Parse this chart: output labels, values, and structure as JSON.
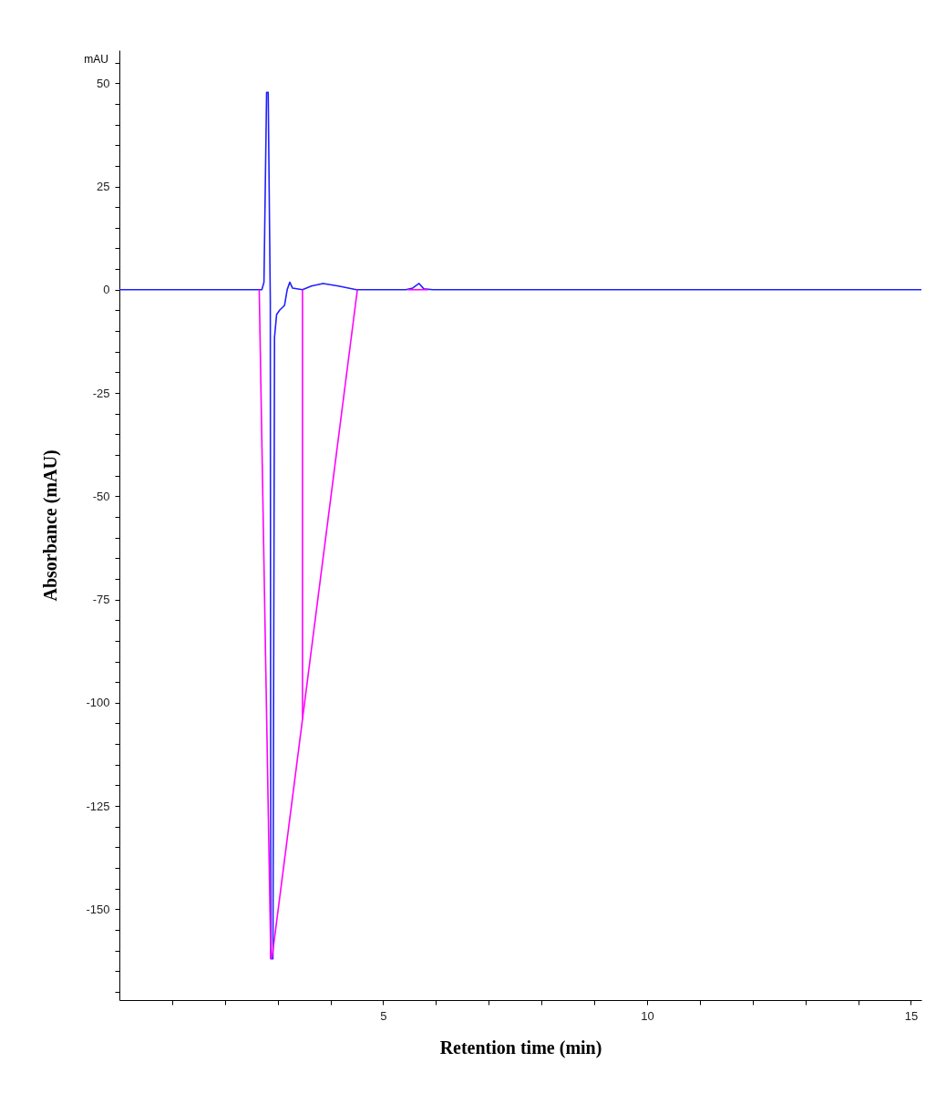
{
  "chart_data": {
    "type": "line",
    "xlabel": "Retention time (min)",
    "ylabel": "Absorbance (mAU)",
    "annotations": [
      "mAU"
    ],
    "xlim": [
      0,
      15.2
    ],
    "ylim": [
      -172,
      58
    ],
    "xticks": [
      {
        "value": 1,
        "label": null
      },
      {
        "value": 2,
        "label": null
      },
      {
        "value": 3,
        "label": null
      },
      {
        "value": 4,
        "label": null
      },
      5,
      {
        "value": 6,
        "label": null
      },
      {
        "value": 7,
        "label": null
      },
      {
        "value": 8,
        "label": null
      },
      {
        "value": 9,
        "label": null
      },
      10,
      {
        "value": 11,
        "label": null
      },
      {
        "value": 12,
        "label": null
      },
      {
        "value": 13,
        "label": null
      },
      {
        "value": 14,
        "label": null
      },
      15
    ],
    "yticks": [
      {
        "value": 55,
        "label": null
      },
      50,
      {
        "value": 45,
        "label": null
      },
      {
        "value": 40,
        "label": null
      },
      {
        "value": 35,
        "label": null
      },
      {
        "value": 30,
        "label": null
      },
      25,
      {
        "value": 20,
        "label": null
      },
      {
        "value": 15,
        "label": null
      },
      {
        "value": 10,
        "label": null
      },
      {
        "value": 5,
        "label": null
      },
      0,
      {
        "value": -5,
        "label": null
      },
      {
        "value": -10,
        "label": null
      },
      {
        "value": -15,
        "label": null
      },
      {
        "value": -20,
        "label": null
      },
      -25,
      {
        "value": -30,
        "label": null
      },
      {
        "value": -35,
        "label": null
      },
      {
        "value": -40,
        "label": null
      },
      {
        "value": -45,
        "label": null
      },
      -50,
      {
        "value": -55,
        "label": null
      },
      {
        "value": -60,
        "label": null
      },
      {
        "value": -65,
        "label": null
      },
      {
        "value": -70,
        "label": null
      },
      -75,
      {
        "value": -80,
        "label": null
      },
      {
        "value": -85,
        "label": null
      },
      {
        "value": -90,
        "label": null
      },
      {
        "value": -95,
        "label": null
      },
      -100,
      {
        "value": -105,
        "label": null
      },
      {
        "value": -110,
        "label": null
      },
      {
        "value": -115,
        "label": null
      },
      {
        "value": -120,
        "label": null
      },
      -125,
      {
        "value": -130,
        "label": null
      },
      {
        "value": -135,
        "label": null
      },
      {
        "value": -140,
        "label": null
      },
      {
        "value": -145,
        "label": null
      },
      -150,
      {
        "value": -155,
        "label": null
      },
      {
        "value": -160,
        "label": null
      },
      {
        "value": -165,
        "label": null
      },
      {
        "value": -170,
        "label": null
      }
    ],
    "grid": false,
    "marker": "none",
    "line_style": "solid",
    "series": [
      {
        "color": "#2020ff",
        "x": [
          0,
          2.62,
          2.7,
          2.74,
          2.79,
          2.82,
          2.86,
          2.87,
          2.91,
          2.94,
          2.98,
          3.04,
          3.13,
          3.18,
          3.23,
          3.28,
          3.47,
          3.64,
          3.86,
          4.15,
          4.49,
          5.43,
          5.56,
          5.68,
          5.77,
          5.94,
          15.2
        ],
        "values": [
          0,
          0,
          0,
          1.8,
          47.8,
          47.8,
          -2.7,
          -162,
          -162,
          -11.5,
          -6,
          -4.9,
          -3.8,
          0,
          1.8,
          0.4,
          0,
          0.9,
          1.5,
          0.9,
          0,
          0,
          0.4,
          1.5,
          0.2,
          0,
          0
        ]
      },
      {
        "color": "#ff00ff",
        "x": [
          2.65,
          2.87
        ],
        "values": [
          0,
          -162
        ]
      },
      {
        "color": "#ff00ff",
        "x": [
          2.89,
          4.51
        ],
        "values": [
          -162,
          0
        ]
      },
      {
        "color": "#ff00ff",
        "x": [
          3.47,
          3.47
        ],
        "values": [
          0,
          -104
        ]
      },
      {
        "color": "#ff00ff",
        "x": [
          5.46,
          5.85
        ],
        "values": [
          0,
          0
        ]
      }
    ]
  }
}
